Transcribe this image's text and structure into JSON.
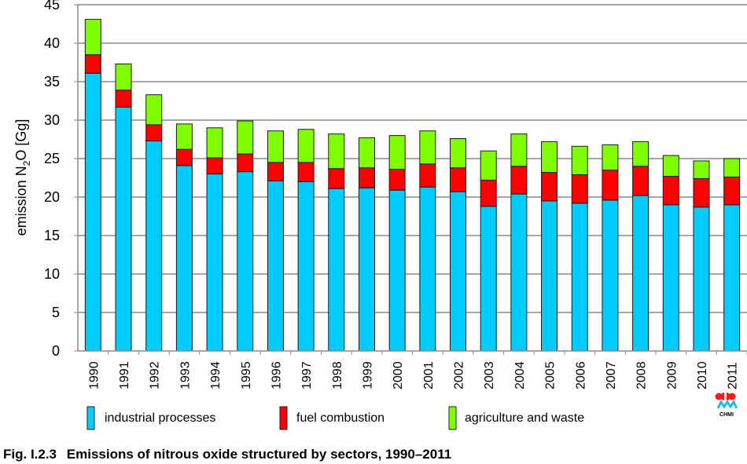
{
  "chart_data": {
    "type": "bar",
    "stacked": true,
    "title": "",
    "xlabel": "",
    "ylabel": "emission N2O [Gg]",
    "ylabel_parts": {
      "pre": "emission N",
      "sub": "2",
      "post": "O [Gg]"
    },
    "ylim": [
      0,
      45
    ],
    "yticks": [
      "0",
      "5",
      "10",
      "15",
      "20",
      "25",
      "30",
      "35",
      "40",
      "45"
    ],
    "grid": true,
    "legend_position": "bottom",
    "categories": [
      "1990",
      "1991",
      "1992",
      "1993",
      "1994",
      "1995",
      "1996",
      "1997",
      "1998",
      "1999",
      "2000",
      "2001",
      "2002",
      "2003",
      "2004",
      "2005",
      "2006",
      "2007",
      "2008",
      "2009",
      "2010",
      "2011"
    ],
    "series": [
      {
        "name": "industrial processes",
        "color": "#00CCFF",
        "values": [
          36.1,
          31.7,
          27.3,
          24.1,
          23.0,
          23.3,
          22.1,
          22.0,
          21.1,
          21.2,
          20.9,
          21.3,
          20.7,
          18.8,
          20.4,
          19.5,
          19.2,
          19.6,
          20.2,
          19.0,
          18.7,
          19.0
        ]
      },
      {
        "name": "fuel combustion",
        "color": "#FF0000",
        "values": [
          2.4,
          2.2,
          2.1,
          2.1,
          2.1,
          2.3,
          2.4,
          2.5,
          2.6,
          2.6,
          2.7,
          3.0,
          3.1,
          3.4,
          3.6,
          3.7,
          3.7,
          3.9,
          3.8,
          3.7,
          3.7,
          3.6
        ]
      },
      {
        "name": "agriculture and waste",
        "color": "#80FF00",
        "values": [
          4.6,
          3.4,
          3.9,
          3.3,
          3.9,
          4.3,
          4.1,
          4.3,
          4.5,
          3.9,
          4.4,
          4.3,
          3.8,
          3.8,
          4.2,
          4.0,
          3.7,
          3.3,
          3.2,
          2.7,
          2.3,
          2.4
        ]
      }
    ]
  },
  "caption": {
    "label": "Fig. I.2.3",
    "text": "Emissions of nitrous oxide structured by sectors, 1990–2011"
  },
  "logo": {
    "text": "CHMI"
  }
}
